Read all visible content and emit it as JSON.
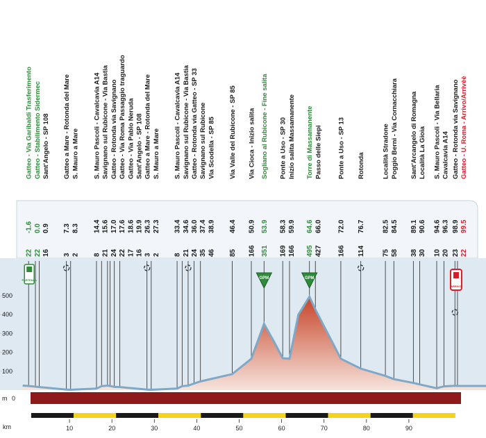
{
  "colors": {
    "green": "#2e8b3a",
    "red": "#d0202a",
    "dark": "#1a1a1a",
    "band": "#8e1a1c",
    "sky": "#dfe9f2",
    "panel": "#f2f6fa",
    "profile_top": "#c64428",
    "profile_bottom": "#f6e3dc",
    "profile_line": "#7fa8c6",
    "yellow": "#f3d31b"
  },
  "icons": {
    "start": "start-flag-icon",
    "finish": "finish-flag-icon",
    "turn": "roundabout-icon",
    "gpm": "gpm-triangle-icon"
  },
  "start_badge": "PARTENZA",
  "finish_badge": "ARRIVO",
  "gpm_label": "GPM",
  "axis": {
    "altitude_unit": "m",
    "altitude_ticks": [
      "100",
      "200",
      "300",
      "400",
      "500"
    ],
    "zero_label": "0",
    "km_label": "km",
    "km_ticks": [
      "10",
      "20",
      "30",
      "40",
      "50",
      "60",
      "70",
      "80",
      "90"
    ]
  },
  "chart_data": {
    "type": "area",
    "xlabel": "km",
    "ylabel": "m",
    "xlim": [
      -1.6,
      99.5
    ],
    "ylim": [
      0,
      550
    ],
    "profile": [
      {
        "x": -1.6,
        "y": 22
      },
      {
        "x": 0.9,
        "y": 16
      },
      {
        "x": 7.3,
        "y": 3
      },
      {
        "x": 8.3,
        "y": 2
      },
      {
        "x": 14.4,
        "y": 8
      },
      {
        "x": 15.6,
        "y": 21
      },
      {
        "x": 17.0,
        "y": 24
      },
      {
        "x": 17.6,
        "y": 22
      },
      {
        "x": 18.6,
        "y": 17
      },
      {
        "x": 19.9,
        "y": 16
      },
      {
        "x": 26.3,
        "y": 3
      },
      {
        "x": 27.3,
        "y": 2
      },
      {
        "x": 33.4,
        "y": 8
      },
      {
        "x": 34.6,
        "y": 21
      },
      {
        "x": 36.0,
        "y": 24
      },
      {
        "x": 37.4,
        "y": 35
      },
      {
        "x": 38.9,
        "y": 46
      },
      {
        "x": 46.4,
        "y": 85
      },
      {
        "x": 50.9,
        "y": 166
      },
      {
        "x": 53.9,
        "y": 351
      },
      {
        "x": 56.4,
        "y": 250
      },
      {
        "x": 58.3,
        "y": 169
      },
      {
        "x": 59.9,
        "y": 166
      },
      {
        "x": 62.0,
        "y": 400
      },
      {
        "x": 64.6,
        "y": 495
      },
      {
        "x": 66.0,
        "y": 427
      },
      {
        "x": 72.0,
        "y": 166
      },
      {
        "x": 76.7,
        "y": 114
      },
      {
        "x": 82.5,
        "y": 75
      },
      {
        "x": 84.5,
        "y": 58
      },
      {
        "x": 89.1,
        "y": 38
      },
      {
        "x": 90.6,
        "y": 30
      },
      {
        "x": 94.6,
        "y": 10
      },
      {
        "x": 96.3,
        "y": 20
      },
      {
        "x": 98.9,
        "y": 23
      },
      {
        "x": 99.5,
        "y": 22
      }
    ],
    "waypoints": [
      {
        "name": "Gatteo - Via Garibaldi Trasferimento",
        "alt": "22",
        "km": "-1.6",
        "color": "green"
      },
      {
        "name": "Gatteo - Stabilimento Sidermec",
        "alt": "22",
        "km": "0.0",
        "color": "green"
      },
      {
        "name": "Sant'Angelo - SP 108",
        "alt": "16",
        "km": "0.9",
        "color": "dark"
      },
      {
        "name": "Gatteo a Mare - Rotonda del Mare",
        "alt": "3",
        "km": "7.3",
        "color": "dark"
      },
      {
        "name": "S. Mauro a Mare",
        "alt": "2",
        "km": "8.3",
        "color": "dark"
      },
      {
        "name": "S. Mauro Pascoli - Cavalcavia A14",
        "alt": "8",
        "km": "14.4",
        "color": "dark"
      },
      {
        "name": "Savignano sul Rubicone - Via Bastia",
        "alt": "21",
        "km": "15.6",
        "color": "dark"
      },
      {
        "name": "Gatteo - Rotonda via Savignano",
        "alt": "24",
        "km": "17.0",
        "color": "dark"
      },
      {
        "name": "Gatteo - Via Roma Passaggio traguardo",
        "alt": "22",
        "km": "17.6",
        "color": "dark"
      },
      {
        "name": "Gatteo - Via Pablo Neruda",
        "alt": "17",
        "km": "18.6",
        "color": "dark"
      },
      {
        "name": "Sant'Angelo - SP 108",
        "alt": "16",
        "km": "19.9",
        "color": "dark"
      },
      {
        "name": "Gatteo a Mare - Rotonda del Mare",
        "alt": "3",
        "km": "26.3",
        "color": "dark"
      },
      {
        "name": "S. Mauro a Mare",
        "alt": "2",
        "km": "27.3",
        "color": "dark"
      },
      {
        "name": "S. Mauro Pascoli - Cavalcavia A14",
        "alt": "8",
        "km": "33.4",
        "color": "dark"
      },
      {
        "name": "Savignano sul Rubicone - Via Bastia",
        "alt": "21",
        "km": "34.6",
        "color": "dark"
      },
      {
        "name": "Gatteo - Rotonda via Gatteo - SP 33",
        "alt": "24",
        "km": "36.0",
        "color": "dark"
      },
      {
        "name": "Savignano sul Rubicone",
        "alt": "35",
        "km": "37.4",
        "color": "dark"
      },
      {
        "name": "Via Scodella - SP 85",
        "alt": "46",
        "km": "38.9",
        "color": "dark"
      },
      {
        "name": "Via Valle del Rubicone - SP 85",
        "alt": "85",
        "km": "46.4",
        "color": "dark"
      },
      {
        "name": "Via Cioca - Inizio salita",
        "alt": "166",
        "km": "50.9",
        "color": "dark"
      },
      {
        "name": "Sogliano al Rubicone - Fine salita",
        "alt": "351",
        "km": "53.9",
        "color": "green"
      },
      {
        "name": "Ponte a Uso - SP 30",
        "alt": "169",
        "km": "58.3",
        "color": "dark"
      },
      {
        "name": "Inizio salita Massamanente",
        "alt": "166",
        "km": "59.9",
        "color": "dark"
      },
      {
        "name": "Torre di Massamanente",
        "alt": "495",
        "km": "64.6",
        "color": "green"
      },
      {
        "name": "Passo delle Siepi",
        "alt": "427",
        "km": "66.0",
        "color": "dark"
      },
      {
        "name": "Ponte a Uso - SP 13",
        "alt": "166",
        "km": "72.0",
        "color": "dark"
      },
      {
        "name": "Rotonda",
        "alt": "114",
        "km": "76.7",
        "color": "dark"
      },
      {
        "name": "Località Stradone",
        "alt": "75",
        "km": "82.5",
        "color": "dark"
      },
      {
        "name": "Poggio Berni - Via Cornacchiara",
        "alt": "58",
        "km": "84.5",
        "color": "dark"
      },
      {
        "name": "Sant'Arcangelo di Romagna",
        "alt": "38",
        "km": "89.1",
        "color": "dark"
      },
      {
        "name": "Località La Gioia",
        "alt": "30",
        "km": "90.6",
        "color": "dark"
      },
      {
        "name": "S. Mauro Pascoli - Via Bellaria",
        "alt": "10",
        "km": "94.6",
        "color": "dark"
      },
      {
        "name": "Cavalcavia A14",
        "alt": "20",
        "km": "96.3",
        "color": "dark"
      },
      {
        "name": "Gatteo - Rotonda via Savignano",
        "alt": "23",
        "km": "98.9",
        "color": "dark"
      },
      {
        "name": "Gatteo - U. Roma - Arrivo/Arrivèè",
        "alt": "22",
        "km": "99.5",
        "color": "red"
      }
    ],
    "gpm_km": [
      53.9,
      64.6
    ],
    "roundabout_km": [
      7.3,
      26.3,
      36.0,
      76.7,
      98.9
    ]
  }
}
